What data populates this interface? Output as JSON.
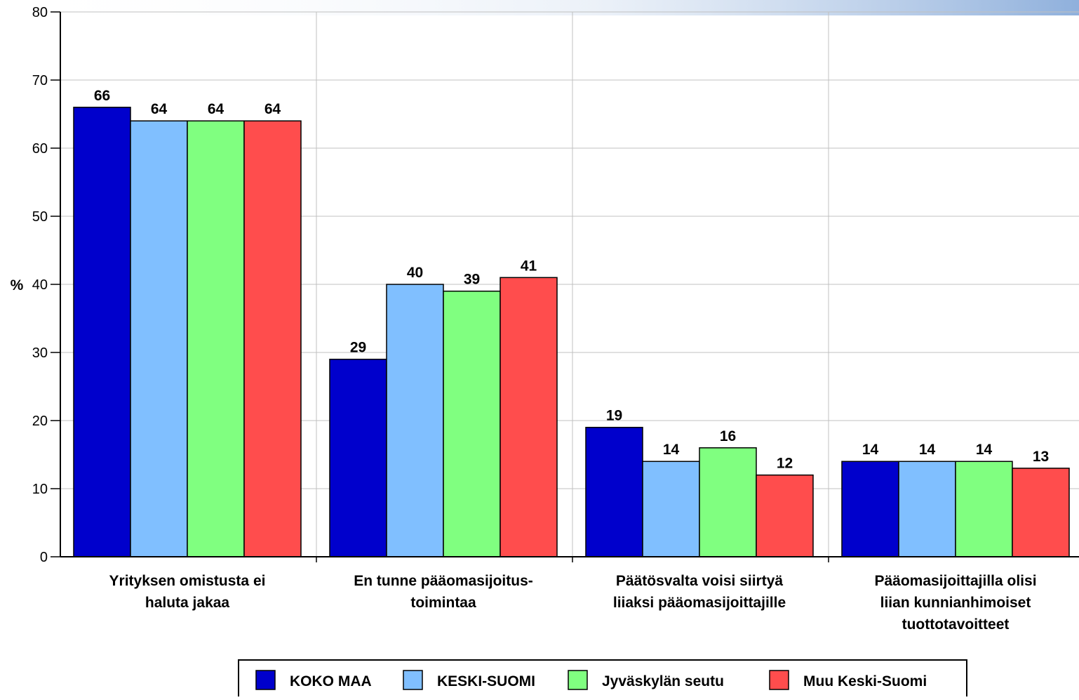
{
  "chart_data": {
    "type": "bar",
    "ylabel": "%",
    "ylim": [
      0,
      80
    ],
    "yticks": [
      0,
      10,
      20,
      30,
      40,
      50,
      60,
      70,
      80
    ],
    "grid": true,
    "legend_position": "bottom",
    "categories": [
      [
        "Yrityksen omistusta ei",
        "haluta jakaa"
      ],
      [
        "En tunne pääomasijoitus-",
        "toimintaa"
      ],
      [
        "Päätösvalta voisi siirtyä",
        "liiaksi pääomasijoittajille"
      ],
      [
        "Pääomasijoittajilla olisi",
        "liian kunnianhimoiset",
        "tuottotavoitteet"
      ]
    ],
    "series": [
      {
        "name": "KOKO MAA",
        "color": "#0000CC",
        "values": [
          66,
          29,
          19,
          14
        ]
      },
      {
        "name": "KESKI-SUOMI",
        "color": "#80BFFF",
        "values": [
          64,
          40,
          14,
          14
        ]
      },
      {
        "name": "Jyväskylän seutu",
        "color": "#80FF80",
        "values": [
          64,
          39,
          16,
          14
        ]
      },
      {
        "name": "Muu Keski-Suomi",
        "color": "#FF4D4D",
        "values": [
          64,
          41,
          12,
          13
        ]
      }
    ]
  }
}
